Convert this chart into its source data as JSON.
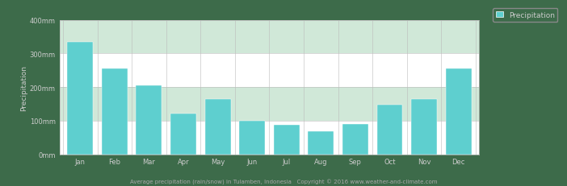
{
  "months": [
    "Jan",
    "Feb",
    "Mar",
    "Apr",
    "May",
    "Jun",
    "Jul",
    "Aug",
    "Sep",
    "Oct",
    "Nov",
    "Dec"
  ],
  "values": [
    335,
    255,
    205,
    120,
    165,
    100,
    88,
    68,
    90,
    148,
    165,
    255
  ],
  "bar_color": "#5ECFCF",
  "bar_edge_color": "#5ECFCF",
  "figure_bg_color": "#3D6B4A",
  "plot_bg_color": "#FFFFFF",
  "alt_band_color": "#D0E8D8",
  "grid_color": "#BBBBBB",
  "axis_text_color": "#CCCCCC",
  "ylabel": "Precipitation",
  "ylim": [
    0,
    400
  ],
  "yticks": [
    0,
    100,
    200,
    300,
    400
  ],
  "ytick_labels": [
    "0mm",
    "100mm",
    "200mm",
    "300mm",
    "400mm"
  ],
  "legend_label": "Precipitation",
  "subtitle": "Average precipitation (rain/snow) in Tulamben, Indonesia   Copyright © 2016 www.weather-and-climate.com",
  "subtitle_color": "#AAAAAA",
  "tick_fontsize": 6.0,
  "ylabel_fontsize": 6.5,
  "legend_fontsize": 6.5
}
